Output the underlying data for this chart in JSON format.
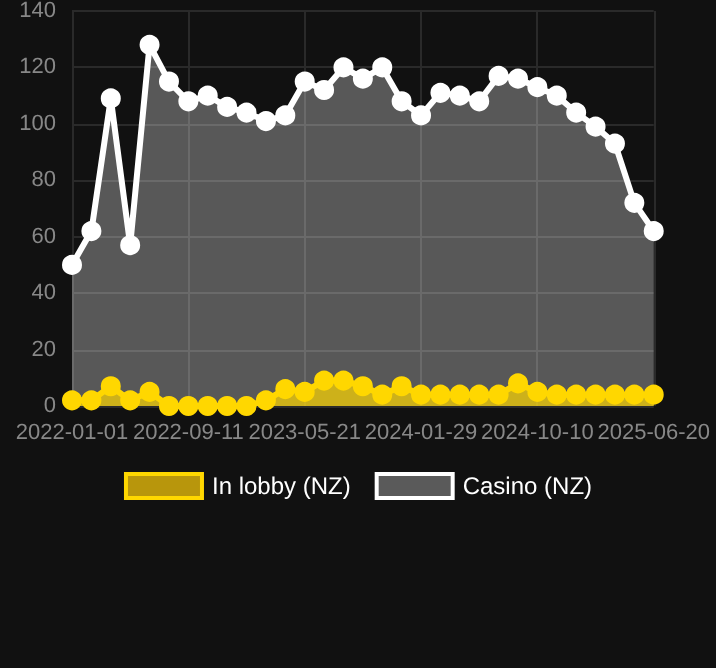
{
  "chart_data": {
    "type": "area",
    "categories": [
      "2022-01-01",
      null,
      null,
      null,
      null,
      null,
      "2022-09-11",
      null,
      null,
      null,
      null,
      null,
      "2023-05-21",
      null,
      null,
      null,
      null,
      null,
      "2024-01-29",
      null,
      null,
      null,
      null,
      null,
      "2024-10-10",
      null,
      null,
      null,
      null,
      null,
      "2025-06-20"
    ],
    "series": [
      {
        "name": "In lobby (NZ)",
        "color": "#ffd700",
        "values": [
          2,
          2,
          7,
          2,
          5,
          0,
          0,
          0,
          0,
          0,
          2,
          6,
          5,
          9,
          9,
          7,
          4,
          7,
          4,
          4,
          4,
          4,
          4,
          8,
          5,
          4,
          4,
          4,
          4,
          4,
          4
        ]
      },
      {
        "name": "Casino (NZ)",
        "color": "#ffffff",
        "values": [
          50,
          62,
          109,
          57,
          128,
          115,
          108,
          110,
          106,
          104,
          101,
          103,
          115,
          112,
          120,
          116,
          120,
          108,
          103,
          111,
          110,
          108,
          117,
          116,
          113,
          110,
          104,
          99,
          93,
          72,
          62
        ]
      }
    ],
    "ylim": [
      0,
      140
    ],
    "yticks": [
      0,
      20,
      40,
      60,
      80,
      100,
      120,
      140
    ],
    "grid": true,
    "legend": "bottom",
    "marker": "circle"
  }
}
